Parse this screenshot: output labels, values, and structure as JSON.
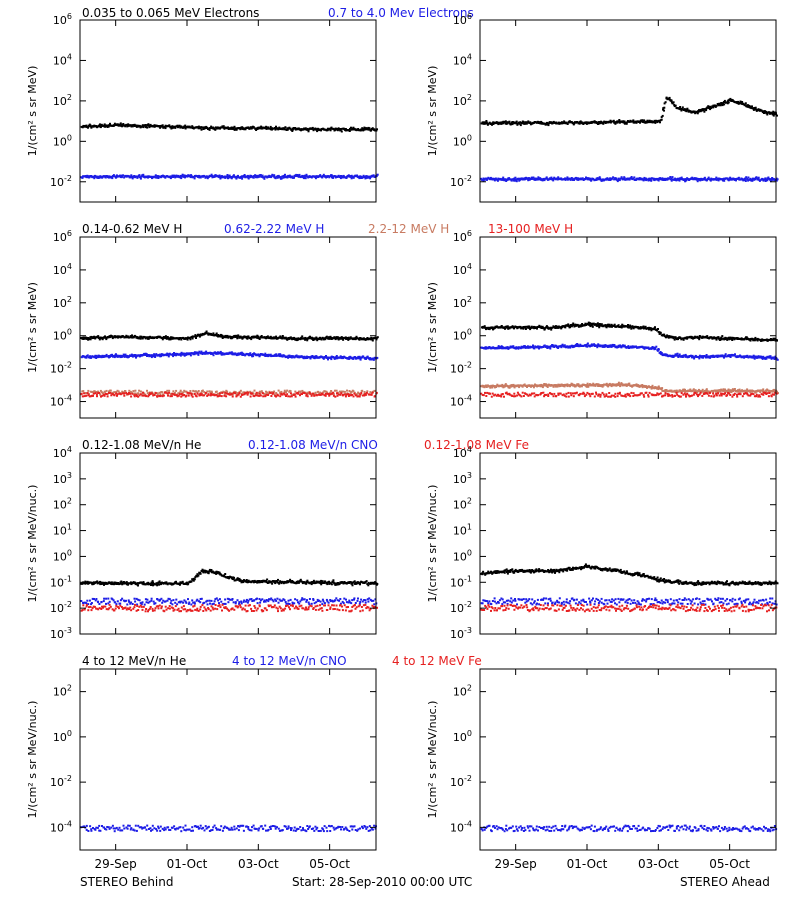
{
  "headers": {
    "row1": [
      {
        "text": "0.035 to 0.065 MeV Electrons",
        "color": "#000000"
      },
      {
        "text": "0.7 to 4.0 Mev Electrons",
        "color": "#1d1de6"
      }
    ],
    "row2": [
      {
        "text": "0.14-0.62 MeV H",
        "color": "#000000"
      },
      {
        "text": "0.62-2.22 MeV H",
        "color": "#1d1de6"
      },
      {
        "text": "2.2-12 MeV H",
        "color": "#c87b62"
      },
      {
        "text": "13-100 MeV H",
        "color": "#e62020"
      }
    ],
    "row3": [
      {
        "text": "0.12-1.08 MeV/n He",
        "color": "#000000"
      },
      {
        "text": "0.12-1.08 MeV/n CNO",
        "color": "#1d1de6"
      },
      {
        "text": "0.12-1.08 MeV Fe",
        "color": "#e62020"
      }
    ],
    "row4": [
      {
        "text": "4 to 12 MeV/n He",
        "color": "#000000"
      },
      {
        "text": "4 to 12 MeV/n CNO",
        "color": "#1d1de6"
      },
      {
        "text": "4 to 12 MeV Fe",
        "color": "#e62020"
      }
    ]
  },
  "footer": {
    "left": "STEREO Behind",
    "center": "Start: 28-Sep-2010 00:00 UTC",
    "right": "STEREO Ahead"
  },
  "x_ticks": [
    "29-Sep",
    "01-Oct",
    "03-Oct",
    "05-Oct"
  ],
  "chart_data": [
    {
      "id": "behind-electrons",
      "type": "scatter",
      "spacecraft": "STEREO Behind",
      "ylabel": "1/(cm² s sr MeV)",
      "ylog": true,
      "ylim": [
        0.001,
        1000000
      ],
      "yticks": [
        {
          "v": 0.01,
          "t": "10",
          "e": "-2"
        },
        {
          "v": 1,
          "t": "10",
          "e": "0"
        },
        {
          "v": 100,
          "t": "10",
          "e": "2"
        },
        {
          "v": 10000,
          "t": "10",
          "e": "4"
        },
        {
          "v": 1000000,
          "t": "10",
          "e": "6"
        }
      ],
      "x_ticks": [
        "29-Sep",
        "01-Oct",
        "03-Oct",
        "05-Oct"
      ],
      "series": [
        {
          "name": "0.035 to 0.065 MeV Electrons",
          "color": "#000000",
          "points": [
            [
              0,
              6
            ],
            [
              1,
              7
            ],
            [
              2,
              6.5
            ],
            [
              3,
              5.5
            ],
            [
              4,
              5
            ],
            [
              5,
              5
            ],
            [
              6,
              4.5
            ],
            [
              7,
              4.5
            ],
            [
              8,
              4.2
            ],
            [
              8.3,
              4.2
            ]
          ]
        },
        {
          "name": "0.7 to 4.0 Mev Electrons",
          "color": "#1d1de6",
          "points": [
            [
              0,
              0.02
            ],
            [
              2,
              0.02
            ],
            [
              4,
              0.02
            ],
            [
              6,
              0.02
            ],
            [
              8.3,
              0.02
            ]
          ]
        }
      ]
    },
    {
      "id": "ahead-electrons",
      "type": "scatter",
      "spacecraft": "STEREO Ahead",
      "ylabel": "1/(cm² s sr MeV)",
      "ylog": true,
      "ylim": [
        0.001,
        1000000
      ],
      "yticks": [
        {
          "v": 0.01,
          "t": "10",
          "e": "-2"
        },
        {
          "v": 1,
          "t": "10",
          "e": "0"
        },
        {
          "v": 100,
          "t": "10",
          "e": "2"
        },
        {
          "v": 10000,
          "t": "10",
          "e": "4"
        },
        {
          "v": 1000000,
          "t": "10",
          "e": "6"
        }
      ],
      "x_ticks": [
        "29-Sep",
        "01-Oct",
        "03-Oct",
        "05-Oct"
      ],
      "series": [
        {
          "name": "0.035 to 0.065 MeV Electrons",
          "color": "#000000",
          "points": [
            [
              0,
              9
            ],
            [
              2,
              9
            ],
            [
              4,
              10
            ],
            [
              5,
              11
            ],
            [
              5.05,
              13
            ],
            [
              5.1,
              40
            ],
            [
              5.2,
              150
            ],
            [
              5.3,
              120
            ],
            [
              5.5,
              50
            ],
            [
              6,
              30
            ],
            [
              6.5,
              60
            ],
            [
              7,
              120
            ],
            [
              7.5,
              60
            ],
            [
              8,
              30
            ],
            [
              8.3,
              22
            ]
          ]
        },
        {
          "name": "0.7 to 4.0 Mev Electrons",
          "color": "#1d1de6",
          "points": [
            [
              0,
              0.015
            ],
            [
              4,
              0.015
            ],
            [
              8.3,
              0.015
            ]
          ]
        }
      ]
    },
    {
      "id": "behind-protons",
      "type": "scatter",
      "spacecraft": "STEREO Behind",
      "ylabel": "1/(cm² s sr MeV)",
      "ylog": true,
      "ylim": [
        1e-05,
        1000000
      ],
      "yticks": [
        {
          "v": 0.0001,
          "t": "10",
          "e": "-4"
        },
        {
          "v": 0.01,
          "t": "10",
          "e": "-2"
        },
        {
          "v": 1,
          "t": "10",
          "e": "0"
        },
        {
          "v": 100,
          "t": "10",
          "e": "2"
        },
        {
          "v": 10000,
          "t": "10",
          "e": "4"
        },
        {
          "v": 1000000,
          "t": "10",
          "e": "6"
        }
      ],
      "x_ticks": [
        "29-Sep",
        "01-Oct",
        "03-Oct",
        "05-Oct"
      ],
      "series": [
        {
          "name": "0.14-0.62 MeV H",
          "color": "#000000",
          "points": [
            [
              0,
              0.8
            ],
            [
              1,
              1.0
            ],
            [
              2,
              0.9
            ],
            [
              3,
              0.8
            ],
            [
              3.5,
              1.6
            ],
            [
              4,
              1.0
            ],
            [
              5,
              0.9
            ],
            [
              6,
              0.8
            ],
            [
              7,
              0.8
            ],
            [
              8.3,
              0.75
            ]
          ]
        },
        {
          "name": "0.62-2.22 MeV H",
          "color": "#1d1de6",
          "points": [
            [
              0,
              0.06
            ],
            [
              2,
              0.075
            ],
            [
              3.5,
              0.1
            ],
            [
              5,
              0.08
            ],
            [
              6,
              0.06
            ],
            [
              8.3,
              0.05
            ]
          ]
        },
        {
          "name": "2.2-12 MeV H",
          "color": "#c87b62",
          "points": [
            [
              0,
              0.0004
            ],
            [
              8.3,
              0.0004
            ]
          ]
        },
        {
          "name": "13-100 MeV H",
          "color": "#e62020",
          "points": [
            [
              0,
              0.0003
            ],
            [
              8.3,
              0.0003
            ]
          ]
        }
      ]
    },
    {
      "id": "ahead-protons",
      "type": "scatter",
      "spacecraft": "STEREO Ahead",
      "ylabel": "1/(cm² s sr MeV)",
      "ylog": true,
      "ylim": [
        1e-05,
        1000000
      ],
      "yticks": [
        {
          "v": 0.0001,
          "t": "10",
          "e": "-4"
        },
        {
          "v": 0.01,
          "t": "10",
          "e": "-2"
        },
        {
          "v": 1,
          "t": "10",
          "e": "0"
        },
        {
          "v": 100,
          "t": "10",
          "e": "2"
        },
        {
          "v": 10000,
          "t": "10",
          "e": "4"
        },
        {
          "v": 1000000,
          "t": "10",
          "e": "6"
        }
      ],
      "x_ticks": [
        "29-Sep",
        "01-Oct",
        "03-Oct",
        "05-Oct"
      ],
      "series": [
        {
          "name": "0.14-0.62 MeV H",
          "color": "#000000",
          "points": [
            [
              0,
              3.5
            ],
            [
              1,
              3.8
            ],
            [
              2,
              3.5
            ],
            [
              2.5,
              4.8
            ],
            [
              3,
              5.5
            ],
            [
              3.5,
              4.5
            ],
            [
              4,
              4.0
            ],
            [
              4.5,
              3.5
            ],
            [
              4.9,
              3.0
            ],
            [
              5.05,
              1.2
            ],
            [
              5.5,
              0.8
            ],
            [
              6,
              0.9
            ],
            [
              7,
              0.8
            ],
            [
              8.3,
              0.6
            ]
          ]
        },
        {
          "name": "0.62-2.22 MeV H",
          "color": "#1d1de6",
          "points": [
            [
              0,
              0.2
            ],
            [
              2,
              0.25
            ],
            [
              3,
              0.3
            ],
            [
              4,
              0.25
            ],
            [
              4.9,
              0.2
            ],
            [
              5.05,
              0.08
            ],
            [
              6,
              0.06
            ],
            [
              7,
              0.07
            ],
            [
              8.3,
              0.05
            ]
          ]
        },
        {
          "name": "2.2-12 MeV H",
          "color": "#c87b62",
          "points": [
            [
              0,
              0.001
            ],
            [
              4,
              0.0012
            ],
            [
              5,
              0.0008
            ],
            [
              5.1,
              0.0005
            ],
            [
              8.3,
              0.0005
            ]
          ]
        },
        {
          "name": "13-100 MeV H",
          "color": "#e62020",
          "points": [
            [
              0,
              0.0003
            ],
            [
              8.3,
              0.0003
            ]
          ]
        }
      ]
    },
    {
      "id": "behind-heavy-low",
      "type": "scatter",
      "spacecraft": "STEREO Behind",
      "ylabel": "1/(cm² s sr MeV/nuc.)",
      "ylog": true,
      "ylim": [
        0.001,
        10000
      ],
      "yticks": [
        {
          "v": 0.001,
          "t": "10",
          "e": "-3"
        },
        {
          "v": 0.01,
          "t": "10",
          "e": "-2"
        },
        {
          "v": 0.1,
          "t": "10",
          "e": "-1"
        },
        {
          "v": 1,
          "t": "10",
          "e": "0"
        },
        {
          "v": 10,
          "t": "10",
          "e": "1"
        },
        {
          "v": 100,
          "t": "10",
          "e": "2"
        },
        {
          "v": 1000,
          "t": "10",
          "e": "3"
        },
        {
          "v": 10000,
          "t": "10",
          "e": "4"
        }
      ],
      "x_ticks": [
        "29-Sep",
        "01-Oct",
        "03-Oct",
        "05-Oct"
      ],
      "series": [
        {
          "name": "0.12-1.08 MeV/n He",
          "color": "#000000",
          "points": [
            [
              0,
              0.1
            ],
            [
              3,
              0.1
            ],
            [
              3.4,
              0.3
            ],
            [
              3.8,
              0.25
            ],
            [
              4.5,
              0.12
            ],
            [
              8.3,
              0.1
            ]
          ]
        },
        {
          "name": "0.12-1.08 MeV/n CNO",
          "color": "#1d1de6",
          "points": [
            [
              0,
              0.02
            ],
            [
              8.3,
              0.02
            ]
          ]
        },
        {
          "name": "0.12-1.08 MeV Fe",
          "color": "#e62020",
          "points": [
            [
              0,
              0.011
            ],
            [
              8.3,
              0.011
            ]
          ]
        }
      ]
    },
    {
      "id": "ahead-heavy-low",
      "type": "scatter",
      "spacecraft": "STEREO Ahead",
      "ylabel": "1/(cm² s sr MeV/nuc.)",
      "ylog": true,
      "ylim": [
        0.001,
        10000
      ],
      "yticks": [
        {
          "v": 0.001,
          "t": "10",
          "e": "-3"
        },
        {
          "v": 0.01,
          "t": "10",
          "e": "-2"
        },
        {
          "v": 0.1,
          "t": "10",
          "e": "-1"
        },
        {
          "v": 1,
          "t": "10",
          "e": "0"
        },
        {
          "v": 10,
          "t": "10",
          "e": "1"
        },
        {
          "v": 100,
          "t": "10",
          "e": "2"
        },
        {
          "v": 1000,
          "t": "10",
          "e": "3"
        },
        {
          "v": 10000,
          "t": "10",
          "e": "4"
        }
      ],
      "x_ticks": [
        "29-Sep",
        "01-Oct",
        "03-Oct",
        "05-Oct"
      ],
      "series": [
        {
          "name": "0.12-1.08 MeV/n He",
          "color": "#000000",
          "points": [
            [
              0,
              0.25
            ],
            [
              1,
              0.3
            ],
            [
              2,
              0.3
            ],
            [
              3,
              0.45
            ],
            [
              3.5,
              0.35
            ],
            [
              4.5,
              0.2
            ],
            [
              5.2,
              0.12
            ],
            [
              6,
              0.1
            ],
            [
              8.3,
              0.1
            ]
          ]
        },
        {
          "name": "0.12-1.08 MeV/n CNO",
          "color": "#1d1de6",
          "points": [
            [
              0,
              0.02
            ],
            [
              8.3,
              0.02
            ]
          ]
        },
        {
          "name": "0.12-1.08 MeV Fe",
          "color": "#e62020",
          "points": [
            [
              0,
              0.011
            ],
            [
              8.3,
              0.011
            ]
          ]
        }
      ]
    },
    {
      "id": "behind-heavy-high",
      "type": "scatter",
      "spacecraft": "STEREO Behind",
      "ylabel": "1/(cm² s sr MeV/nuc.)",
      "ylog": true,
      "ylim": [
        1e-05,
        1000
      ],
      "yticks": [
        {
          "v": 0.0001,
          "t": "10",
          "e": "-4"
        },
        {
          "v": 0.01,
          "t": "10",
          "e": "-2"
        },
        {
          "v": 1,
          "t": "10",
          "e": "0"
        },
        {
          "v": 100,
          "t": "10",
          "e": "2"
        }
      ],
      "x_ticks": [
        "29-Sep",
        "01-Oct",
        "03-Oct",
        "05-Oct"
      ],
      "series": [
        {
          "name": "4 to 12 MeV/n CNO",
          "color": "#1d1de6",
          "points": [
            [
              0,
              0.0001
            ],
            [
              8.3,
              0.0001
            ]
          ]
        }
      ]
    },
    {
      "id": "ahead-heavy-high",
      "type": "scatter",
      "spacecraft": "STEREO Ahead",
      "ylabel": "1/(cm² s sr MeV/nuc.)",
      "ylog": true,
      "ylim": [
        1e-05,
        1000
      ],
      "yticks": [
        {
          "v": 0.0001,
          "t": "10",
          "e": "-4"
        },
        {
          "v": 0.01,
          "t": "10",
          "e": "-2"
        },
        {
          "v": 1,
          "t": "10",
          "e": "0"
        },
        {
          "v": 100,
          "t": "10",
          "e": "2"
        }
      ],
      "x_ticks": [
        "29-Sep",
        "01-Oct",
        "03-Oct",
        "05-Oct"
      ],
      "series": [
        {
          "name": "4 to 12 MeV/n CNO",
          "color": "#1d1de6",
          "points": [
            [
              0,
              0.0001
            ],
            [
              8.3,
              0.0001
            ]
          ]
        }
      ]
    }
  ]
}
